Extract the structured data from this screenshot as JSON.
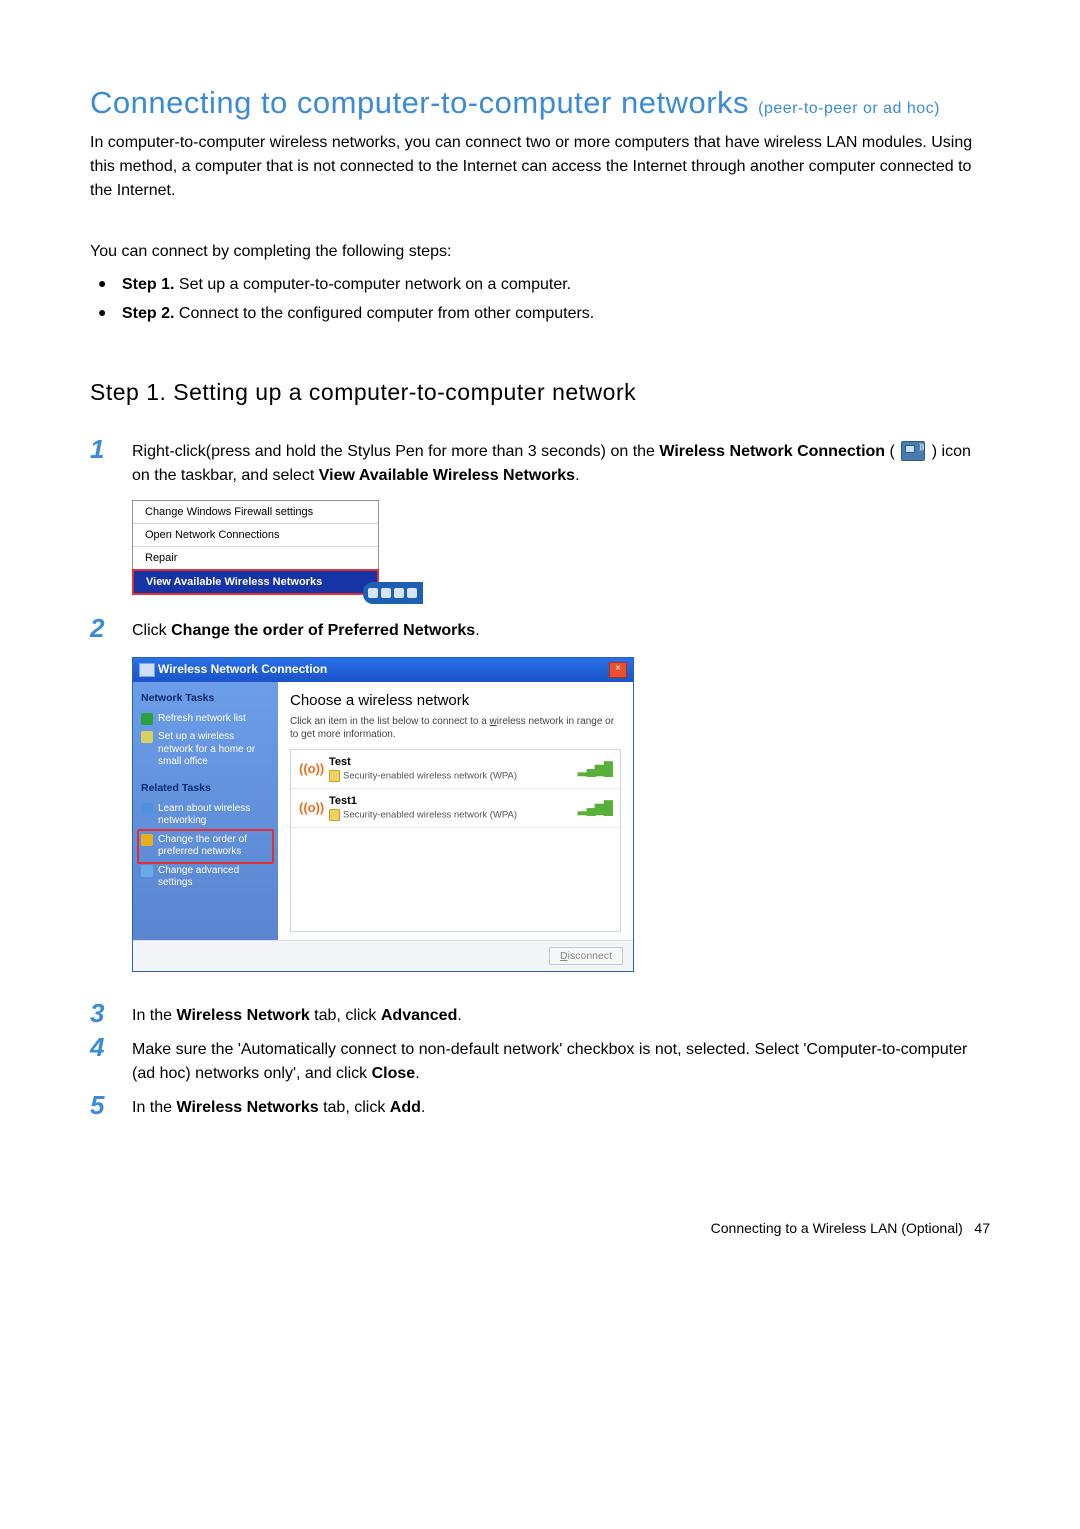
{
  "colors": {
    "accent": "#3a8bd8",
    "step_num": "#3a8bd8",
    "highlight_border": "#e03030",
    "win_title_bg_from": "#2a72e8",
    "win_title_bg_to": "#1a52c8",
    "sidebar_bg_from": "#6b9de8",
    "sidebar_bg_to": "#5a85d0",
    "antenna_icon": "#e87020",
    "signal_icon": "#58b038"
  },
  "title": {
    "main": "Connecting to computer-to-computer networks ",
    "sub": "(peer-to-peer or ad hoc)"
  },
  "intro": "In computer-to-computer wireless networks, you can connect two or more computers that have wireless LAN modules. Using this method, a computer that is not connected to the Internet can access the Internet through another computer connected to the Internet.",
  "steps_intro": "You can connect by completing the following steps:",
  "bullets": [
    {
      "prefix": "Step 1.",
      "text": " Set up a computer-to-computer network on a computer."
    },
    {
      "prefix": "Step 2.",
      "text": " Connect to the configured computer from other computers."
    }
  ],
  "section_heading": "Step 1. Setting up a computer-to-computer network",
  "instr": [
    {
      "n": "1",
      "text_a": "Right-click(press and hold the Stylus Pen for more than 3 seconds) on the ",
      "bold_a": "Wireless Network Connection",
      "text_b": " ( ",
      "text_c": " ) icon on the taskbar, and select ",
      "bold_b": "View Available Wireless Networks",
      "text_d": "."
    },
    {
      "n": "2",
      "text_a": "Click ",
      "bold_a": "Change the order of Preferred Networks",
      "text_b": "."
    },
    {
      "n": "3",
      "text_a": "In the ",
      "bold_a": "Wireless Network",
      "text_b": " tab, click ",
      "bold_b": "Advanced",
      "text_c": "."
    },
    {
      "n": "4",
      "text_a": "Make sure the 'Automatically connect to non-default network' checkbox is not, selected. Select 'Computer-to-computer (ad hoc) networks only', and click ",
      "bold_a": "Close",
      "text_b": "."
    },
    {
      "n": "5",
      "text_a": "In the ",
      "bold_a": "Wireless Networks",
      "text_b": " tab, click ",
      "bold_b": "Add",
      "text_c": "."
    }
  ],
  "ctx_menu": {
    "items": [
      "Change Windows Firewall settings",
      "Open Network Connections",
      "Repair"
    ],
    "highlighted": "View Available Wireless Networks"
  },
  "wnc": {
    "title": "Wireless Network Connection",
    "sidebar": {
      "h1": "Network Tasks",
      "links1": [
        {
          "label": "Refresh network list",
          "icon_color": "#2aa040"
        },
        {
          "label": "Set up a wireless network for a home or small office",
          "icon_color": "#d8d060"
        }
      ],
      "h2": "Related Tasks",
      "links2": [
        {
          "label": "Learn about wireless networking",
          "icon_color": "#5090e0",
          "highlighted": false
        },
        {
          "label": "Change the order of preferred networks",
          "icon_color": "#e8b020",
          "highlighted": true
        },
        {
          "label": "Change advanced settings",
          "icon_color": "#6aa8e8",
          "highlighted": false
        }
      ]
    },
    "main": {
      "heading": "Choose a wireless network",
      "sub": "Click an item in the list below to connect to a wireless network in range or to get more information.",
      "networks": [
        {
          "name": "Test",
          "sec": "Security-enabled wireless network (WPA)"
        },
        {
          "name": "Test1",
          "sec": "Security-enabled wireless network (WPA)"
        }
      ],
      "footer_btn": "Disconnect"
    }
  },
  "footer": {
    "text": "Connecting to a Wireless LAN (Optional)",
    "page": "47"
  }
}
